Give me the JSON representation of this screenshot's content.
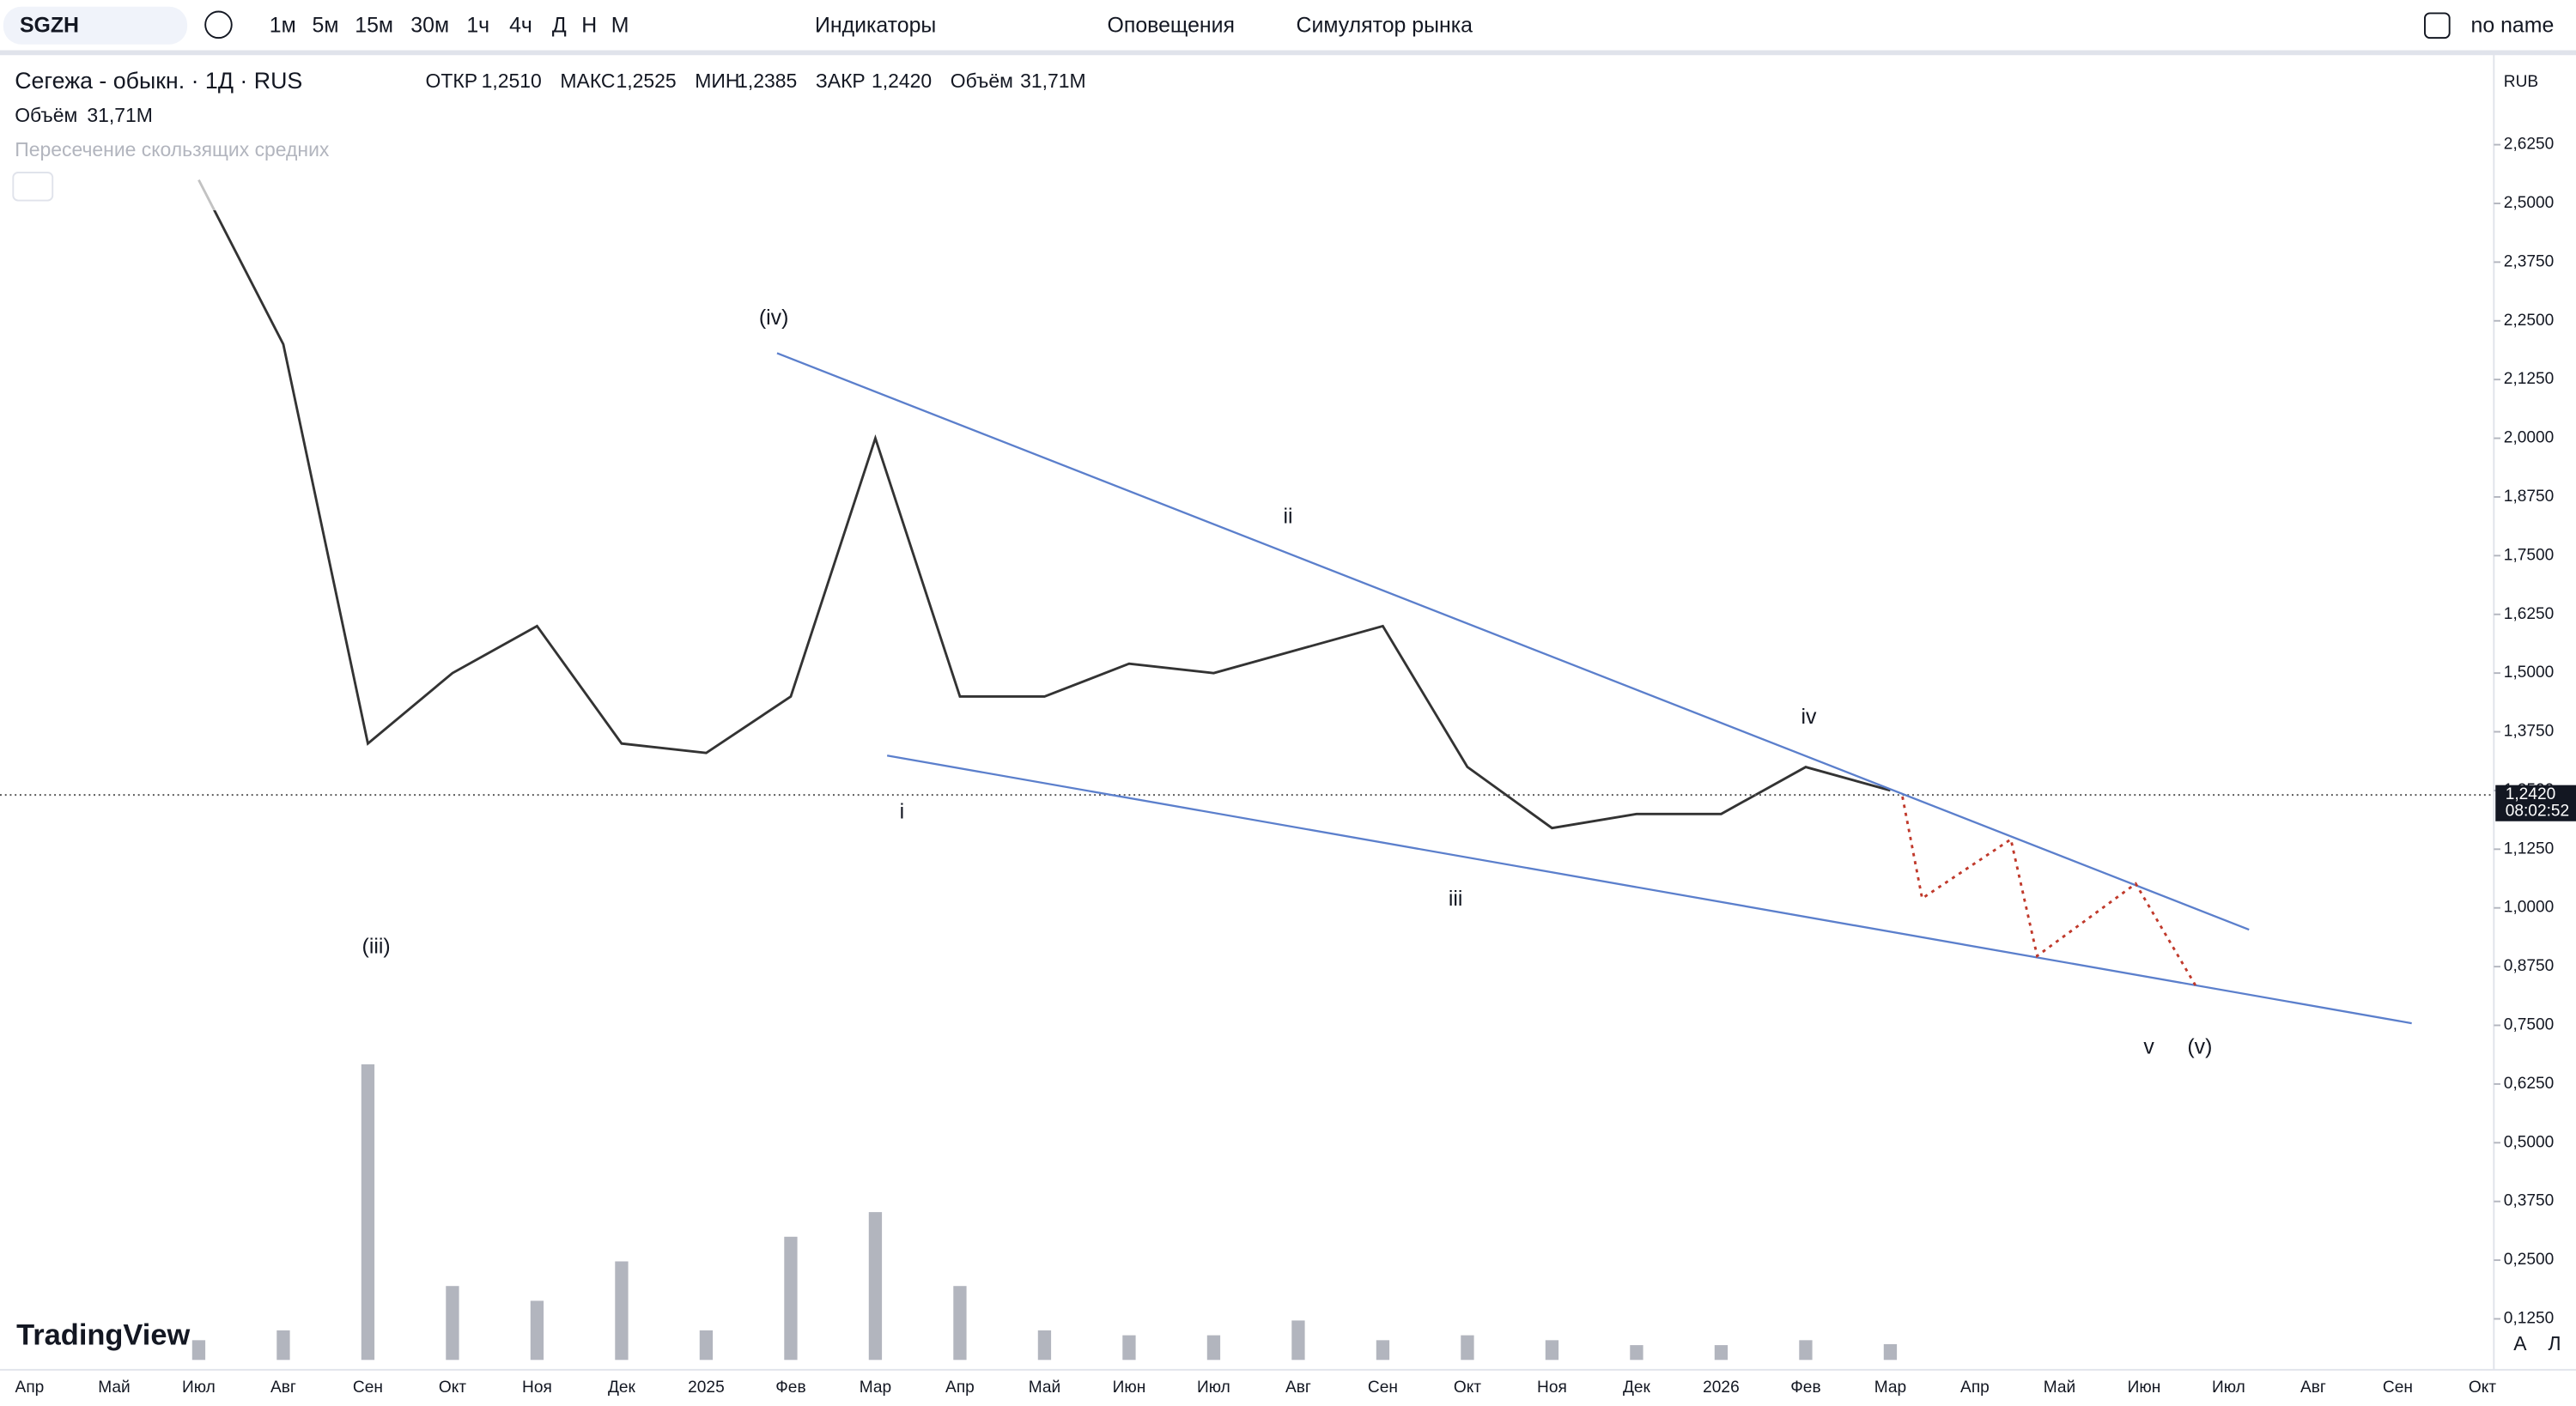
{
  "toolbar": {
    "symbol": "SGZH",
    "intervals": [
      "1м",
      "5м",
      "15м",
      "30м",
      "1ч",
      "4ч",
      "Д",
      "Н",
      "М"
    ],
    "indicators": "Индикаторы",
    "alerts": "Оповещения",
    "replay": "Симулятор рынка",
    "layout": "no name"
  },
  "legend": {
    "title": "Сегежа - обыкн. · 1Д · RUS",
    "fields": [
      {
        "label": "ОТКР",
        "value": "1,2510"
      },
      {
        "label": "МАКС",
        "value": "1,2525"
      },
      {
        "label": "МИН",
        "value": "1,2385"
      },
      {
        "label": "ЗАКР",
        "value": "1,2420"
      },
      {
        "label": "Объём",
        "value": "31,71M"
      }
    ],
    "volume_label": "Объём",
    "volume_value": "31,71M",
    "indicator": "Пересечение скользящих средних"
  },
  "price_scale": {
    "currency": "RUB",
    "last_price": "1,2420",
    "countdown": "08:02:52"
  },
  "chart_data": {
    "type": "line",
    "color": "#333333",
    "categories": [
      "Апр",
      "Май",
      "Июл",
      "Авг",
      "Сен",
      "Окт",
      "Ноя",
      "Дек",
      "2025",
      "Фев",
      "Мар",
      "Апр",
      "Май",
      "Июн",
      "Июл",
      "Авг",
      "Сен",
      "Окт",
      "Ноя",
      "Дек",
      "2026",
      "Фев",
      "Мар",
      "Апр",
      "Май",
      "Июн",
      "Июл",
      "Авг",
      "Сен",
      "Окт"
    ],
    "values": [
      null,
      null,
      2.55,
      2.2,
      1.35,
      1.5,
      1.6,
      1.35,
      1.33,
      1.45,
      2.0,
      1.45,
      1.45,
      1.52,
      1.5,
      1.55,
      1.6,
      1.3,
      1.17,
      1.2,
      1.2,
      1.3,
      1.25,
      null,
      null,
      null,
      null,
      null,
      null,
      null
    ],
    "volume": {
      "color": "#b2b5be",
      "values": [
        null,
        null,
        40,
        60,
        600,
        150,
        120,
        200,
        60,
        250,
        300,
        150,
        60,
        50,
        50,
        80,
        40,
        50,
        40,
        30,
        30,
        40,
        32,
        null,
        null,
        null,
        null,
        null,
        null,
        null
      ]
    },
    "ylim": [
      0,
      2.8
    ],
    "y2lim": [
      0,
      1000
    ],
    "yticks": [
      {
        "value": 0.125,
        "label": "0,1250"
      },
      {
        "value": 0.25,
        "label": "0,2500"
      },
      {
        "value": 0.375,
        "label": "0,3750"
      },
      {
        "value": 0.5,
        "label": "0,5000"
      },
      {
        "value": 0.625,
        "label": "0,6250"
      },
      {
        "value": 0.75,
        "label": "0,7500"
      },
      {
        "value": 0.875,
        "label": "0,8750"
      },
      {
        "value": 1,
        "label": "1,0000"
      },
      {
        "value": 1.125,
        "label": "1,1250"
      },
      {
        "value": 1.25,
        "label": "1,2500"
      },
      {
        "value": 1.375,
        "label": "1,3750"
      },
      {
        "value": 1.5,
        "label": "1,5000"
      },
      {
        "value": 1.625,
        "label": "1,6250"
      },
      {
        "value": 1.75,
        "label": "1,7500"
      },
      {
        "value": 1.875,
        "label": "1,8750"
      },
      {
        "value": 2,
        "label": "2,0000"
      },
      {
        "value": 2.125,
        "label": "2,1250"
      },
      {
        "value": 2.25,
        "label": "2,2500"
      },
      {
        "value": 2.375,
        "label": "2,3750"
      },
      {
        "value": 2.5,
        "label": "2,5000"
      },
      {
        "value": 2.625,
        "label": "2,6250"
      }
    ]
  },
  "wave_labels": [
    "(iv)",
    "ii",
    "iv",
    "i",
    "iii",
    "(iii)",
    "v",
    "(v)"
  ],
  "logo": "TradingView",
  "scale_buttons": [
    "A",
    "Л"
  ]
}
